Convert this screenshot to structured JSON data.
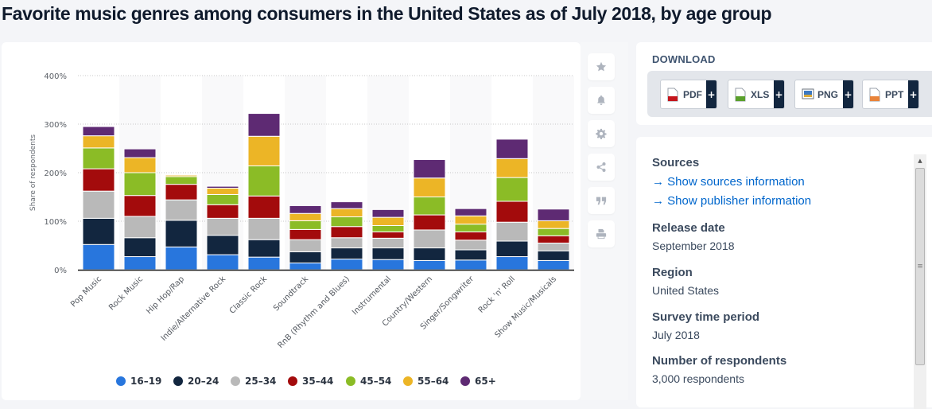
{
  "title": "Favorite music genres among consumers in the United States as of July 2018, by age group",
  "toolbar": {
    "buttons": [
      {
        "name": "favorite",
        "icon": "star-icon"
      },
      {
        "name": "notification",
        "icon": "bell-icon"
      },
      {
        "name": "settings",
        "icon": "gear-icon"
      },
      {
        "name": "share",
        "icon": "share-icon"
      },
      {
        "name": "cite",
        "icon": "quote-icon"
      },
      {
        "name": "print",
        "icon": "printer-icon"
      }
    ]
  },
  "download": {
    "title": "DOWNLOAD",
    "buttons": [
      {
        "label": "PDF",
        "icon": "pdf-file-icon",
        "color": "#c4151c"
      },
      {
        "label": "XLS",
        "icon": "xls-file-icon",
        "color": "#5aa02c"
      },
      {
        "label": "PNG",
        "icon": "png-file-icon",
        "color": "#3a78c2"
      },
      {
        "label": "PPT",
        "icon": "ppt-file-icon",
        "color": "#e8833a"
      }
    ],
    "plus": "+"
  },
  "info": {
    "sources_label": "Sources",
    "links": [
      "Show sources information",
      "Show publisher information"
    ],
    "link_arrow": "→",
    "release_date_label": "Release date",
    "release_date": "September 2018",
    "region_label": "Region",
    "region": "United States",
    "survey_period_label": "Survey time period",
    "survey_period": "July 2018",
    "respondents_label": "Number of respondents",
    "respondents": "3,000 respondents"
  },
  "chart_data": {
    "type": "bar",
    "stacked": true,
    "title": "Favorite music genres among consumers in the United States as of July 2018, by age group",
    "xlabel": "",
    "ylabel": "Share of respondents",
    "ylim": [
      0,
      400
    ],
    "yticks": [
      0,
      100,
      200,
      300,
      400
    ],
    "ytick_labels": [
      "0%",
      "100%",
      "200%",
      "300%",
      "400%"
    ],
    "grid": true,
    "legend_position": "bottom",
    "categories": [
      "Pop Music",
      "Rock Music",
      "Hip Hop/Rap",
      "Indie/Alternative Rock",
      "Classic Rock",
      "Soundtrack",
      "RnB (Rhythm and Blues)",
      "Instrumental",
      "Country/Western",
      "Singer/Songwriter",
      "Rock 'n' Roll",
      "Show Music/Musicals"
    ],
    "series": [
      {
        "name": "16-19",
        "color": "#2876dd",
        "values": [
          52,
          27,
          47,
          31,
          26,
          14,
          22,
          21,
          19,
          20,
          27,
          19
        ]
      },
      {
        "name": "20-24",
        "color": "#12263f",
        "values": [
          54,
          39,
          55,
          40,
          36,
          23,
          23,
          24,
          26,
          21,
          32,
          20
        ]
      },
      {
        "name": "25-34",
        "color": "#b9b9b9",
        "values": [
          56,
          44,
          42,
          35,
          44,
          25,
          21,
          20,
          37,
          20,
          39,
          16
        ]
      },
      {
        "name": "35-44",
        "color": "#a30b0c",
        "values": [
          46,
          43,
          32,
          28,
          46,
          21,
          23,
          13,
          31,
          17,
          43,
          15
        ]
      },
      {
        "name": "45-54",
        "color": "#8bbc26",
        "values": [
          43,
          47,
          16,
          21,
          62,
          18,
          20,
          13,
          37,
          16,
          49,
          15
        ]
      },
      {
        "name": "55-64",
        "color": "#ecb526",
        "values": [
          25,
          31,
          3,
          13,
          61,
          15,
          17,
          17,
          39,
          17,
          39,
          16
        ]
      },
      {
        "name": "65+",
        "color": "#5e2a73",
        "values": [
          19,
          18,
          1,
          4,
          47,
          16,
          14,
          16,
          38,
          15,
          40,
          24
        ]
      }
    ],
    "legend_labels": [
      "16–19",
      "20–24",
      "25–34",
      "35–44",
      "45–54",
      "55–64",
      "65+"
    ]
  }
}
